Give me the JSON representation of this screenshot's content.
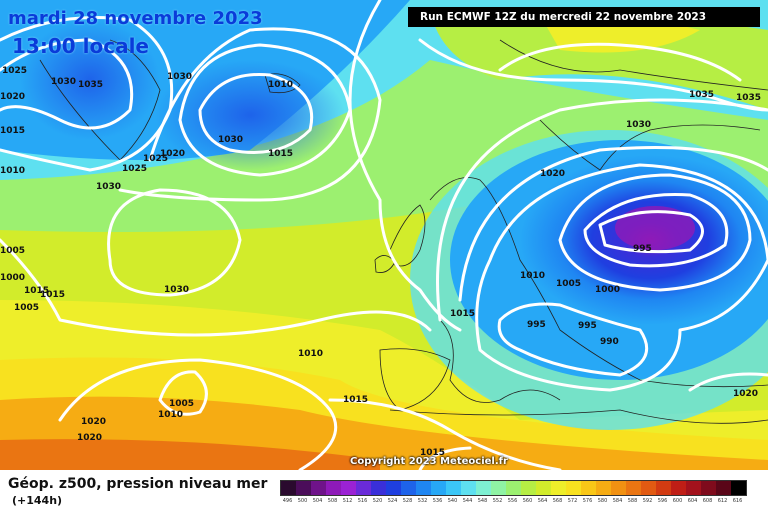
{
  "header": {
    "date": "mardi 28 novembre 2023",
    "hour": "13:00 locale",
    "run": "Run ECMWF 12Z du mercredi 22 novembre 2023"
  },
  "copyright": "Copyright 2023 Meteociel.fr",
  "footer": {
    "product": "Géop. z500, pression niveau mer",
    "lead": "(+144h)"
  },
  "legend": {
    "labels": [
      "496",
      "500",
      "504",
      "508",
      "512",
      "516",
      "520",
      "524",
      "528",
      "532",
      "536",
      "540",
      "544",
      "548",
      "552",
      "556",
      "560",
      "564",
      "568",
      "572",
      "576",
      "580",
      "584",
      "588",
      "592",
      "596",
      "600",
      "604",
      "608",
      "612",
      "616"
    ],
    "colors": [
      "#2a0a2e",
      "#4b0d5a",
      "#6f138a",
      "#8e1ab8",
      "#9b22d4",
      "#6a2bd9",
      "#3a2fd9",
      "#1f3fe0",
      "#1e63ea",
      "#1f86f2",
      "#27a8f6",
      "#3bc7f7",
      "#5ee0f0",
      "#7ef0d2",
      "#8ff3a4",
      "#9cf070",
      "#b6ee44",
      "#d2ec2b",
      "#eeee2a",
      "#f8e11f",
      "#f9c717",
      "#f6ac13",
      "#f19112",
      "#ea7512",
      "#e15a12",
      "#d23b12",
      "#bf1e16",
      "#a3121c",
      "#7f0b1c",
      "#5a0618",
      "#000000"
    ]
  },
  "isobars": [
    "1025",
    "1030",
    "1035",
    "1020",
    "1015",
    "1010",
    "1030",
    "1010",
    "1015",
    "1025",
    "1020",
    "1025",
    "1030",
    "1005",
    "1000",
    "1015",
    "1005",
    "1015",
    "1030",
    "1030",
    "1035",
    "1035",
    "1030",
    "1020",
    "995",
    "1010",
    "1005",
    "1000",
    "995",
    "995",
    "990",
    "1015",
    "1010",
    "1005",
    "1010",
    "1020",
    "1020",
    "1015",
    "1020",
    "1015"
  ]
}
